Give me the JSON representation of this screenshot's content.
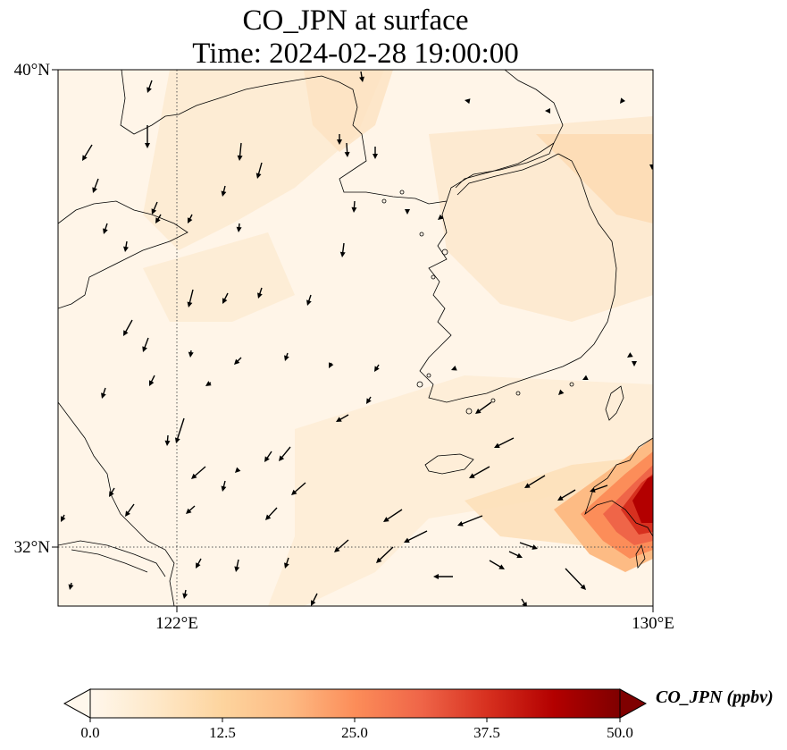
{
  "title": "CO_JPN at surface",
  "subtitle": "Time: 2024-02-28 19:00:00",
  "axes": {
    "lat_ticks": [
      {
        "lat": 40,
        "label": "40°N"
      },
      {
        "lat": 32,
        "label": "32°N"
      }
    ],
    "lon_ticks": [
      {
        "lon": 122,
        "label": "122°E"
      },
      {
        "lon": 130,
        "label": "130°E"
      }
    ],
    "lon_range": [
      120,
      130
    ],
    "lat_range": [
      31,
      40
    ],
    "gridlines": "dotted at 122°E and 32°N"
  },
  "colorbar": {
    "label": "CO_JPN (ppbv)",
    "ticks": [
      "0.0",
      "12.5",
      "25.0",
      "37.5",
      "50.0"
    ],
    "min": 0,
    "max": 50,
    "extend": "both",
    "colormap": "OrRd",
    "colors": [
      "#fff7ec",
      "#fee8c8",
      "#fdd49e",
      "#fdbb84",
      "#fc8d59",
      "#ef6548",
      "#d7301f",
      "#b30000",
      "#7f0000"
    ]
  },
  "field_description_values": {
    "background_ppbv": 2,
    "southeast_max_ppbv": 50
  }
}
